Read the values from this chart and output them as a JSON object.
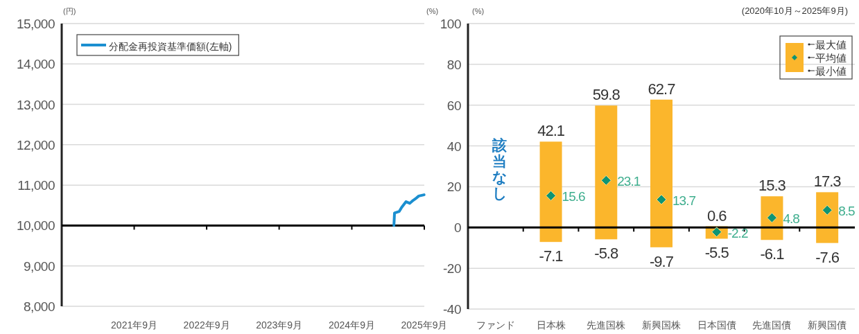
{
  "chart_data": [
    {
      "type": "line",
      "ylabel": "(円)",
      "x": [
        "2025-04-01",
        "2025-04-04",
        "2025-04-28",
        "2025-05-10",
        "2025-06-01",
        "2025-06-20",
        "2025-07-06",
        "2025-07-18",
        "2025-08-04",
        "2025-08-31"
      ],
      "series": [
        {
          "name": "分配金再投資基準価額(左軸)",
          "color": "#1b8fd0",
          "values": [
            10000,
            10310,
            10350,
            10450,
            10590,
            10550,
            10620,
            10660,
            10730,
            10760
          ]
        }
      ],
      "xlim": [
        "2020-09",
        "2025-09"
      ],
      "xticks": [
        {
          "value": "2021-09",
          "label": "2021年9月"
        },
        {
          "value": "2022-09",
          "label": "2022年9月"
        },
        {
          "value": "2023-09",
          "label": "2023年9月"
        },
        {
          "value": "2024-09",
          "label": "2024年9月"
        },
        {
          "value": "2025-09",
          "label": "2025年9月"
        }
      ],
      "ylim": [
        8000,
        15000
      ],
      "yticks": [
        {
          "value": 8000,
          "label": "8,000"
        },
        {
          "value": 9000,
          "label": "9,000"
        },
        {
          "value": 10000,
          "label": "10,000"
        },
        {
          "value": 11000,
          "label": "11,000"
        },
        {
          "value": 12000,
          "label": "12,000"
        },
        {
          "value": 13000,
          "label": "13,000"
        },
        {
          "value": 14000,
          "label": "14,000"
        },
        {
          "value": 15000,
          "label": "15,000"
        }
      ],
      "grid": "y",
      "legend": "top left",
      "ref_lines": [
        {
          "axis": "y",
          "value": 10000,
          "color": "#000000"
        }
      ]
    },
    {
      "type": "bar",
      "subtitle": "(2020年10月～2025年9月)",
      "ylabel": "(%)",
      "categories": [
        "ファンド",
        "日本株",
        "先進国株",
        "新興国株",
        "日本国債",
        "先進国債",
        "新興国債"
      ],
      "series": [
        {
          "color": "#fbb62c",
          "base": [
            null,
            -7.1,
            -5.8,
            -9.7,
            -5.5,
            -6.1,
            -7.6
          ],
          "values": [
            null,
            49.2,
            65.6,
            72.4,
            6.1,
            21.4,
            24.9
          ],
          "value_labels": [
            null,
            "42.1",
            "59.8",
            "62.7",
            "0.6",
            "15.3",
            "17.3"
          ]
        },
        {
          "type": "scatter",
          "name": "平均値",
          "color": "#0e9474",
          "values": [
            null,
            15.6,
            23.1,
            13.7,
            -2.2,
            4.8,
            8.5
          ],
          "marker": "diamond",
          "value_labels": [
            null,
            "15.6",
            "23.1",
            "13.7",
            "-2.2",
            "4.8",
            "8.5"
          ]
        }
      ],
      "ylim": [
        -40,
        100
      ],
      "yticks": [
        -40,
        -20,
        0,
        20,
        40,
        60,
        80,
        100
      ],
      "grid": "y",
      "legend": "top right",
      "ref_lines": [
        {
          "axis": "y",
          "value": 0,
          "color": "#000000"
        }
      ],
      "annotations": [
        "(%)",
        "該当なし",
        "最大値",
        "最小値",
        "-7.1",
        "-5.8",
        "-9.7",
        "-5.5",
        "-6.1",
        "-7.6"
      ]
    }
  ]
}
